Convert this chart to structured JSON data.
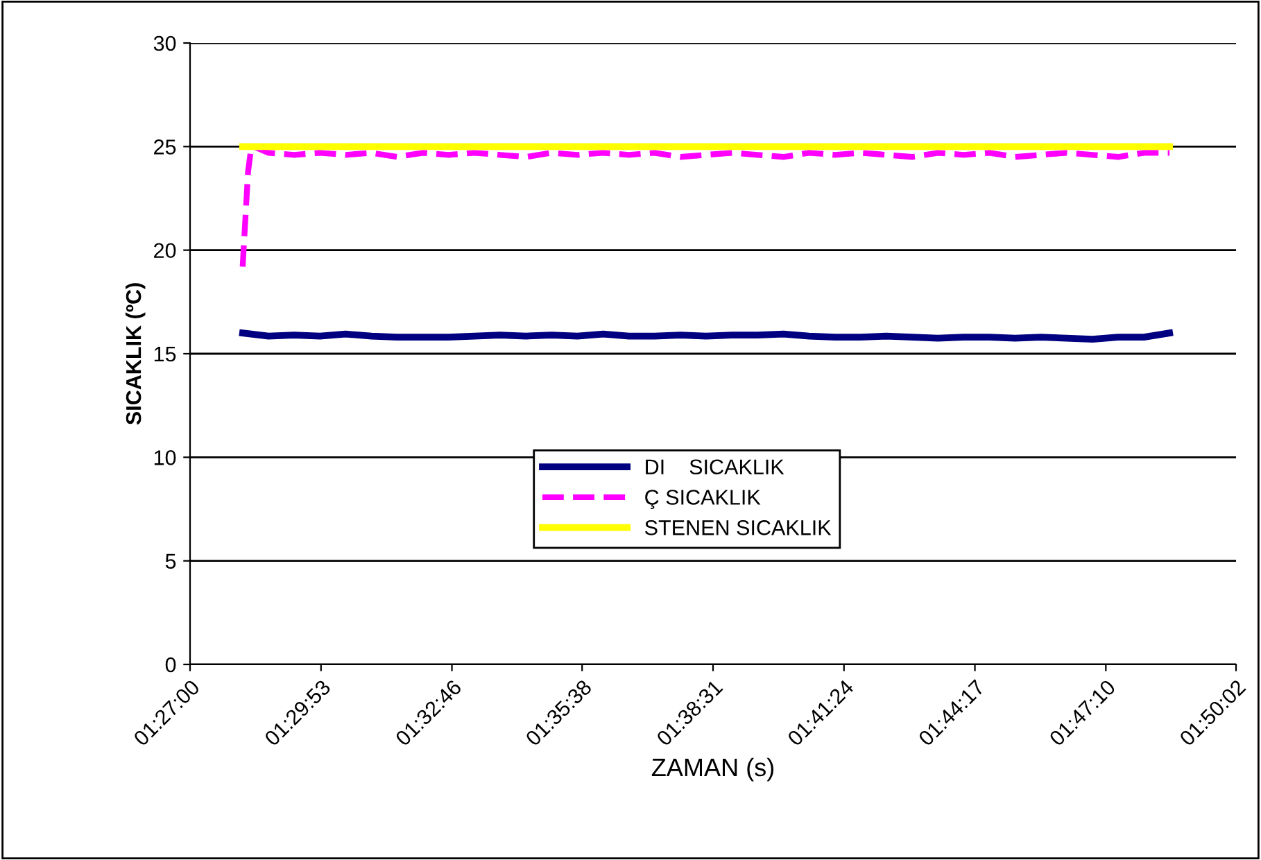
{
  "chart_data": {
    "type": "line",
    "xlabel": "ZAMAN (s)",
    "ylabel": "SICAKLIK (ºC)",
    "xlim": [
      1.45,
      1.83389
    ],
    "xticks": [
      {
        "value": 1.45,
        "label": "01:27:00"
      },
      {
        "value": 1.49806,
        "label": "01:29:53"
      },
      {
        "value": 1.54611,
        "label": "01:32:46"
      },
      {
        "value": 1.59389,
        "label": "01:35:38"
      },
      {
        "value": 1.64194,
        "label": "01:38:31"
      },
      {
        "value": 1.69,
        "label": "01:41:24"
      },
      {
        "value": 1.73806,
        "label": "01:44:17"
      },
      {
        "value": 1.78611,
        "label": "01:47:10"
      },
      {
        "value": 1.83389,
        "label": "01:50:02"
      }
    ],
    "ylim": [
      0,
      30
    ],
    "yticks": [
      0,
      5,
      10,
      15,
      20,
      25,
      30
    ],
    "grid": "y",
    "legend": "center",
    "marker": "none",
    "series": [
      {
        "name": "DI    SICAKLIK",
        "color": "#000080",
        "line_style": "solid",
        "x": [
          1.4693,
          1.4788,
          1.4882,
          1.4977,
          1.5071,
          1.5166,
          1.526,
          1.5355,
          1.5449,
          1.5544,
          1.5638,
          1.5733,
          1.5827,
          1.5922,
          1.6016,
          1.6111,
          1.6205,
          1.63,
          1.6394,
          1.6489,
          1.6583,
          1.6678,
          1.6772,
          1.6867,
          1.6961,
          1.7056,
          1.715,
          1.7245,
          1.7339,
          1.7434,
          1.7528,
          1.7623,
          1.7717,
          1.7812,
          1.7906,
          1.8001,
          1.8095
        ],
        "values": [
          16.0,
          15.85,
          15.9,
          15.85,
          15.95,
          15.85,
          15.8,
          15.8,
          15.8,
          15.85,
          15.9,
          15.85,
          15.9,
          15.85,
          15.95,
          15.85,
          15.85,
          15.9,
          15.85,
          15.9,
          15.9,
          15.95,
          15.85,
          15.8,
          15.8,
          15.85,
          15.8,
          15.75,
          15.8,
          15.8,
          15.75,
          15.8,
          15.75,
          15.7,
          15.8,
          15.8,
          16.0
        ]
      },
      {
        "name": "Ç SICAKLIK",
        "color": "#ff00ff",
        "line_style": "dashed",
        "x": [
          1.4693,
          1.4703,
          1.4713,
          1.4723,
          1.4733,
          1.4788,
          1.4882,
          1.4977,
          1.5071,
          1.5166,
          1.526,
          1.5355,
          1.5449,
          1.5544,
          1.5638,
          1.5733,
          1.5827,
          1.5922,
          1.6016,
          1.6111,
          1.6205,
          1.63,
          1.6394,
          1.6489,
          1.6583,
          1.6678,
          1.6772,
          1.6867,
          1.6961,
          1.7056,
          1.715,
          1.7245,
          1.7339,
          1.7434,
          1.7528,
          1.7623,
          1.7717,
          1.7812,
          1.7906,
          1.8001,
          1.8095
        ],
        "values": [
          19.2,
          21.5,
          23.8,
          24.8,
          25.0,
          24.7,
          24.6,
          24.7,
          24.6,
          24.7,
          24.5,
          24.7,
          24.6,
          24.7,
          24.6,
          24.5,
          24.7,
          24.6,
          24.7,
          24.6,
          24.7,
          24.5,
          24.6,
          24.7,
          24.6,
          24.5,
          24.7,
          24.6,
          24.7,
          24.6,
          24.5,
          24.7,
          24.6,
          24.7,
          24.5,
          24.6,
          24.7,
          24.6,
          24.5,
          24.7,
          24.7
        ]
      },
      {
        "name": "STENEN SICAKLIK",
        "color": "#ffff00",
        "line_style": "solid",
        "x": [
          1.4693,
          1.8095
        ],
        "values": [
          25,
          25
        ]
      }
    ]
  }
}
